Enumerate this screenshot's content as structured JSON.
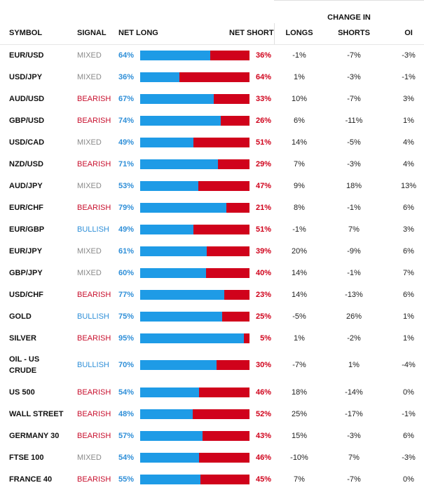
{
  "headers": {
    "symbol": "SYMBOL",
    "signal": "SIGNAL",
    "net_long": "NET LONG",
    "net_short": "NET SHORT",
    "change_in": "CHANGE IN",
    "longs": "LONGS",
    "shorts": "SHORTS",
    "oi": "OI"
  },
  "colors": {
    "long_bar": "#1e9be6",
    "short_bar": "#d0021b",
    "bearish": "#c8102e",
    "bullish": "#2f8fd8",
    "mixed": "#8a8a8a"
  },
  "rows": [
    {
      "symbol": "EUR/USD",
      "signal": "MIXED",
      "net_long": "64%",
      "net_short": "36%",
      "long_pct": 64,
      "longs": "-1%",
      "shorts": "-7%",
      "oi": "-3%"
    },
    {
      "symbol": "USD/JPY",
      "signal": "MIXED",
      "net_long": "36%",
      "net_short": "64%",
      "long_pct": 36,
      "longs": "1%",
      "shorts": "-3%",
      "oi": "-1%"
    },
    {
      "symbol": "AUD/USD",
      "signal": "BEARISH",
      "net_long": "67%",
      "net_short": "33%",
      "long_pct": 67,
      "longs": "10%",
      "shorts": "-7%",
      "oi": "3%"
    },
    {
      "symbol": "GBP/USD",
      "signal": "BEARISH",
      "net_long": "74%",
      "net_short": "26%",
      "long_pct": 74,
      "longs": "6%",
      "shorts": "-11%",
      "oi": "1%"
    },
    {
      "symbol": "USD/CAD",
      "signal": "MIXED",
      "net_long": "49%",
      "net_short": "51%",
      "long_pct": 49,
      "longs": "14%",
      "shorts": "-5%",
      "oi": "4%"
    },
    {
      "symbol": "NZD/USD",
      "signal": "BEARISH",
      "net_long": "71%",
      "net_short": "29%",
      "long_pct": 71,
      "longs": "7%",
      "shorts": "-3%",
      "oi": "4%"
    },
    {
      "symbol": "AUD/JPY",
      "signal": "MIXED",
      "net_long": "53%",
      "net_short": "47%",
      "long_pct": 53,
      "longs": "9%",
      "shorts": "18%",
      "oi": "13%"
    },
    {
      "symbol": "EUR/CHF",
      "signal": "BEARISH",
      "net_long": "79%",
      "net_short": "21%",
      "long_pct": 79,
      "longs": "8%",
      "shorts": "-1%",
      "oi": "6%"
    },
    {
      "symbol": "EUR/GBP",
      "signal": "BULLISH",
      "net_long": "49%",
      "net_short": "51%",
      "long_pct": 49,
      "longs": "-1%",
      "shorts": "7%",
      "oi": "3%"
    },
    {
      "symbol": "EUR/JPY",
      "signal": "MIXED",
      "net_long": "61%",
      "net_short": "39%",
      "long_pct": 61,
      "longs": "20%",
      "shorts": "-9%",
      "oi": "6%"
    },
    {
      "symbol": "GBP/JPY",
      "signal": "MIXED",
      "net_long": "60%",
      "net_short": "40%",
      "long_pct": 60,
      "longs": "14%",
      "shorts": "-1%",
      "oi": "7%"
    },
    {
      "symbol": "USD/CHF",
      "signal": "BEARISH",
      "net_long": "77%",
      "net_short": "23%",
      "long_pct": 77,
      "longs": "14%",
      "shorts": "-13%",
      "oi": "6%"
    },
    {
      "symbol": "GOLD",
      "signal": "BULLISH",
      "net_long": "75%",
      "net_short": "25%",
      "long_pct": 75,
      "longs": "-5%",
      "shorts": "26%",
      "oi": "1%"
    },
    {
      "symbol": "SILVER",
      "signal": "BEARISH",
      "net_long": "95%",
      "net_short": "5%",
      "long_pct": 95,
      "longs": "1%",
      "shorts": "-2%",
      "oi": "1%"
    },
    {
      "symbol": "OIL - US CRUDE",
      "signal": "BULLISH",
      "net_long": "70%",
      "net_short": "30%",
      "long_pct": 70,
      "longs": "-7%",
      "shorts": "1%",
      "oi": "-4%"
    },
    {
      "symbol": "US 500",
      "signal": "BEARISH",
      "net_long": "54%",
      "net_short": "46%",
      "long_pct": 54,
      "longs": "18%",
      "shorts": "-14%",
      "oi": "0%"
    },
    {
      "symbol": "WALL STREET",
      "signal": "BEARISH",
      "net_long": "48%",
      "net_short": "52%",
      "long_pct": 48,
      "longs": "25%",
      "shorts": "-17%",
      "oi": "-1%"
    },
    {
      "symbol": "GERMANY 30",
      "signal": "BEARISH",
      "net_long": "57%",
      "net_short": "43%",
      "long_pct": 57,
      "longs": "15%",
      "shorts": "-3%",
      "oi": "6%"
    },
    {
      "symbol": "FTSE 100",
      "signal": "MIXED",
      "net_long": "54%",
      "net_short": "46%",
      "long_pct": 54,
      "longs": "-10%",
      "shorts": "7%",
      "oi": "-3%"
    },
    {
      "symbol": "FRANCE 40",
      "signal": "BEARISH",
      "net_long": "55%",
      "net_short": "45%",
      "long_pct": 55,
      "longs": "7%",
      "shorts": "-7%",
      "oi": "0%"
    }
  ]
}
